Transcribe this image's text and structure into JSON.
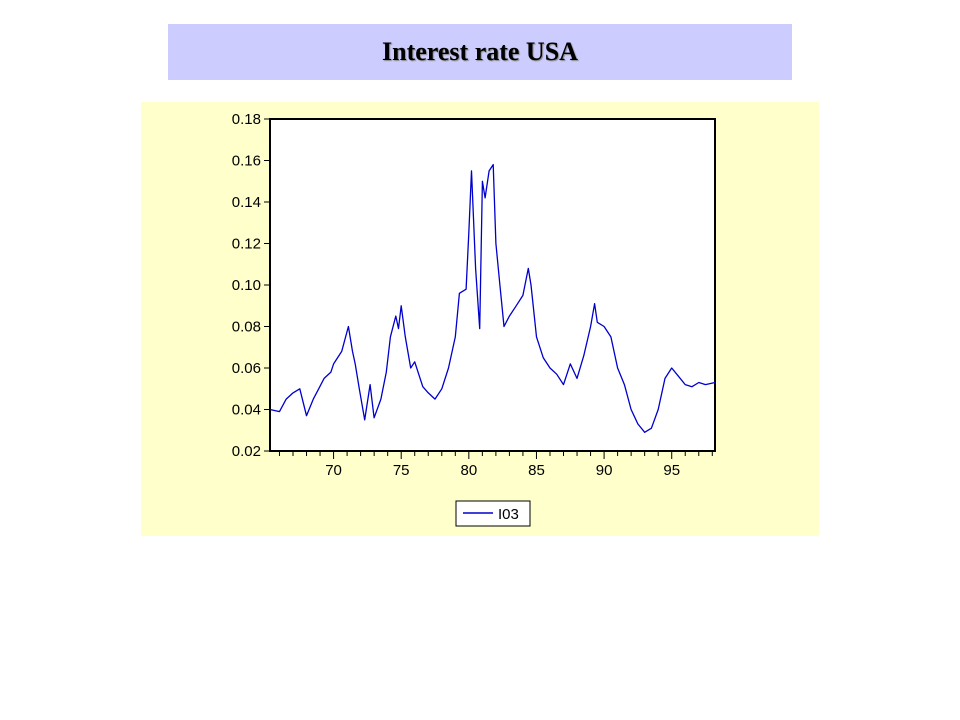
{
  "slide": {
    "title": "Interest rate USA"
  },
  "colors": {
    "title_bg": "#ccccff",
    "panel_bg": "#ffffcc",
    "plot_bg": "#ffffff",
    "line": "#0000cc"
  },
  "chart_data": {
    "type": "line",
    "title": "",
    "xlabel": "",
    "ylabel": "",
    "xlim": [
      1965.3,
      1998.2
    ],
    "ylim": [
      0.02,
      0.18
    ],
    "x_ticks": [
      70,
      75,
      80,
      85,
      90,
      95
    ],
    "x_tick_labels": [
      "70",
      "75",
      "80",
      "85",
      "90",
      "95"
    ],
    "y_ticks": [
      0.02,
      0.04,
      0.06,
      0.08,
      0.1,
      0.12,
      0.14,
      0.16,
      0.18
    ],
    "y_tick_labels": [
      "0.02",
      "0.04",
      "0.06",
      "0.08",
      "0.10",
      "0.12",
      "0.14",
      "0.16",
      "0.18"
    ],
    "legend": {
      "position": "bottom-center",
      "entries": [
        "I03"
      ]
    },
    "grid": false,
    "series": [
      {
        "name": "I03",
        "color": "#0000cc",
        "x": [
          1965.3,
          1966.0,
          1966.5,
          1967.0,
          1967.5,
          1968.0,
          1968.5,
          1968.9,
          1969.3,
          1969.8,
          1970.0,
          1970.6,
          1971.1,
          1971.4,
          1971.6,
          1971.9,
          1972.3,
          1972.7,
          1973.0,
          1973.5,
          1973.9,
          1974.2,
          1974.6,
          1974.8,
          1975.0,
          1975.3,
          1975.7,
          1976.0,
          1976.6,
          1977.0,
          1977.5,
          1978.0,
          1978.5,
          1979.0,
          1979.3,
          1979.8,
          1980.0,
          1980.2,
          1980.5,
          1980.8,
          1981.0,
          1981.2,
          1981.5,
          1981.8,
          1982.0,
          1982.3,
          1982.6,
          1983.0,
          1983.5,
          1984.0,
          1984.4,
          1984.6,
          1985.0,
          1985.5,
          1986.0,
          1986.5,
          1987.0,
          1987.5,
          1988.0,
          1988.5,
          1989.0,
          1989.3,
          1989.5,
          1990.0,
          1990.5,
          1991.0,
          1991.5,
          1992.0,
          1992.5,
          1993.0,
          1993.5,
          1994.0,
          1994.5,
          1995.0,
          1995.5,
          1996.0,
          1996.5,
          1997.0,
          1997.5,
          1998.2
        ],
        "values": [
          0.04,
          0.039,
          0.045,
          0.048,
          0.05,
          0.037,
          0.045,
          0.05,
          0.055,
          0.058,
          0.062,
          0.068,
          0.08,
          0.068,
          0.062,
          0.05,
          0.035,
          0.052,
          0.036,
          0.045,
          0.058,
          0.075,
          0.085,
          0.079,
          0.09,
          0.075,
          0.06,
          0.063,
          0.051,
          0.048,
          0.045,
          0.05,
          0.06,
          0.075,
          0.096,
          0.098,
          0.125,
          0.155,
          0.108,
          0.079,
          0.15,
          0.142,
          0.155,
          0.158,
          0.12,
          0.1,
          0.08,
          0.085,
          0.09,
          0.095,
          0.108,
          0.1,
          0.075,
          0.065,
          0.06,
          0.057,
          0.052,
          0.062,
          0.055,
          0.066,
          0.08,
          0.091,
          0.082,
          0.08,
          0.075,
          0.06,
          0.052,
          0.04,
          0.033,
          0.029,
          0.031,
          0.04,
          0.055,
          0.06,
          0.056,
          0.052,
          0.051,
          0.053,
          0.052,
          0.053
        ]
      }
    ]
  }
}
